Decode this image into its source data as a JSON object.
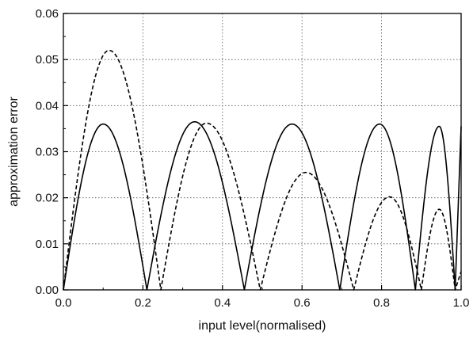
{
  "chart_data": {
    "type": "line",
    "xlabel": "input level(normalised)",
    "ylabel": "approximation error",
    "xlim": [
      0,
      1
    ],
    "ylim": [
      0,
      0.06
    ],
    "grid": true,
    "x_ticks": [
      "0.0",
      "0.2",
      "0.4",
      "0.6",
      "0.8",
      "1.0"
    ],
    "y_ticks": [
      "0.00",
      "0.01",
      "0.02",
      "0.03",
      "0.04",
      "0.05",
      "0.06"
    ],
    "series": [
      {
        "style": "solid",
        "color": "#000000",
        "arches": [
          {
            "start": 0.0,
            "end": 0.21,
            "peak_x": 0.1,
            "peak_y": 0.036
          },
          {
            "start": 0.21,
            "end": 0.455,
            "peak_x": 0.33,
            "peak_y": 0.0365
          },
          {
            "start": 0.455,
            "end": 0.695,
            "peak_x": 0.575,
            "peak_y": 0.036
          },
          {
            "start": 0.695,
            "end": 0.885,
            "peak_x": 0.795,
            "peak_y": 0.036
          },
          {
            "start": 0.885,
            "end": 0.985,
            "peak_x": 0.945,
            "peak_y": 0.0355
          }
        ]
      },
      {
        "style": "dashed",
        "color": "#000000",
        "arches": [
          {
            "start": 0.0,
            "end": 0.245,
            "peak_x": 0.115,
            "peak_y": 0.052
          },
          {
            "start": 0.245,
            "end": 0.495,
            "peak_x": 0.36,
            "peak_y": 0.0362
          },
          {
            "start": 0.495,
            "end": 0.73,
            "peak_x": 0.61,
            "peak_y": 0.0255
          },
          {
            "start": 0.73,
            "end": 0.9,
            "peak_x": 0.82,
            "peak_y": 0.0202
          },
          {
            "start": 0.9,
            "end": 0.985,
            "peak_x": 0.945,
            "peak_y": 0.0175
          }
        ]
      }
    ]
  }
}
